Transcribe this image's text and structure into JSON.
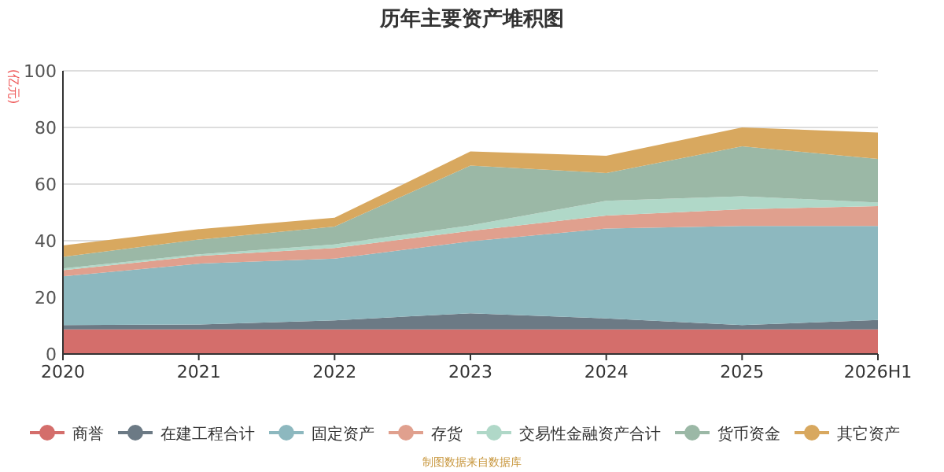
{
  "chart_data": {
    "type": "area",
    "title": "历年主要资产堆积图",
    "ylabel": "(亿元)",
    "stacked": true,
    "categories": [
      "2020",
      "2021",
      "2022",
      "2023",
      "2024",
      "2025",
      "2026H1"
    ],
    "series": [
      {
        "name": "商誉",
        "color": "#d46e6b",
        "values": [
          8.7,
          8.7,
          8.7,
          8.7,
          8.7,
          8.7,
          8.7
        ]
      },
      {
        "name": "在建工程合计",
        "color": "#6c7a85",
        "values": [
          1.5,
          1.7,
          3.2,
          5.7,
          3.9,
          1.5,
          3.3
        ]
      },
      {
        "name": "固定资产",
        "color": "#8db8bf",
        "values": [
          17.2,
          21.5,
          21.8,
          25.4,
          31.7,
          35.0,
          33.2
        ]
      },
      {
        "name": "存货",
        "color": "#e0a08e",
        "values": [
          2.2,
          2.7,
          3.7,
          3.7,
          4.6,
          5.9,
          7.0
        ]
      },
      {
        "name": "交易性金融资产合计",
        "color": "#b0d8c8",
        "values": [
          0.6,
          0.6,
          1.3,
          1.9,
          5.2,
          4.6,
          1.3
        ]
      },
      {
        "name": "货币资金",
        "color": "#9bb8a6",
        "values": [
          4.1,
          5.2,
          6.3,
          21.1,
          9.8,
          17.6,
          15.4
        ]
      },
      {
        "name": "其它资产",
        "color": "#d8a85f",
        "values": [
          4.0,
          3.7,
          3.1,
          5.0,
          6.1,
          6.7,
          9.3
        ]
      }
    ],
    "ylim": [
      0,
      100
    ],
    "yticks": [
      0,
      20,
      40,
      60,
      80,
      100
    ],
    "grid": "y",
    "legend": "bottom",
    "annotations": [
      "制图数据来自数据库"
    ]
  }
}
